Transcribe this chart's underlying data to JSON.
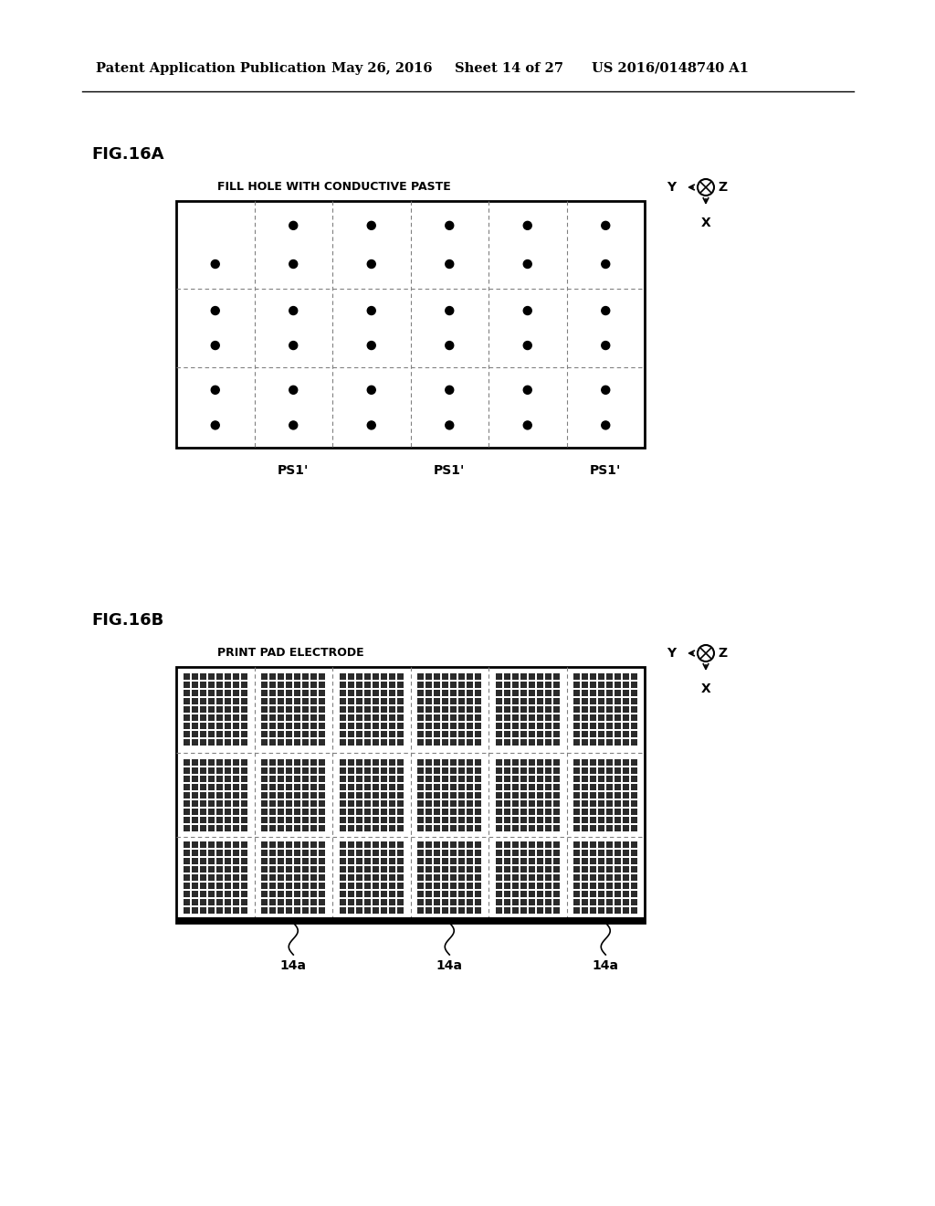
{
  "bg_color": "#ffffff",
  "header_text": "Patent Application Publication",
  "header_date": "May 26, 2016",
  "header_sheet": "Sheet 14 of 27",
  "header_patent": "US 2016/0148740 A1",
  "fig_a_label": "FIG.16A",
  "fig_b_label": "FIG.16B",
  "fig_a_title": "FILL HOLE WITH CONDUCTIVE PASTE",
  "fig_b_title": "PRINT PAD ELECTRODE",
  "ps1_label": "PS1'",
  "label_14a": "14a"
}
